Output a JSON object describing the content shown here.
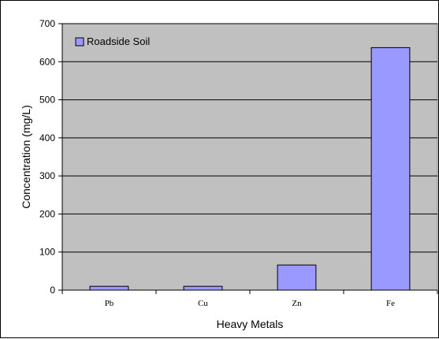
{
  "chart_data": {
    "type": "bar",
    "categories": [
      "Pb",
      "Cu",
      "Zn",
      "Fe"
    ],
    "series": [
      {
        "name": "Roadside Soil",
        "values": [
          10,
          10,
          66,
          637
        ],
        "color": "#9999ff"
      }
    ],
    "xlabel": "Heavy Metals",
    "ylabel": "Concentration (mg/L)",
    "ylim": [
      0,
      700
    ],
    "yticks": [
      0,
      100,
      200,
      300,
      400,
      500,
      600,
      700
    ],
    "grid": true,
    "legend": "top-left",
    "plot_background": "#c0c0c0"
  }
}
